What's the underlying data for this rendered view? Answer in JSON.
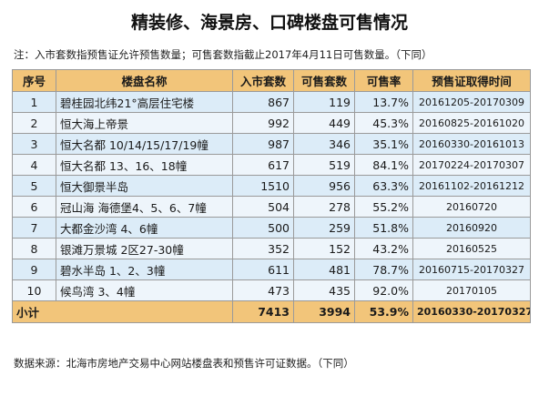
{
  "title": "精装修、海景房、口碑楼盘可售情况",
  "note_top": "注：入市套数指预售证允许预售数量；可售套数指截止2017年4月11日可售数量。（下同）",
  "colors": {
    "header_bg": "#f2c57a",
    "row_bg": "#dcecf8",
    "row_alt_bg": "#eef5fb",
    "border": "#9a9a9a"
  },
  "table": {
    "headers": [
      "序号",
      "楼盘名称",
      "入市套数",
      "可售套数",
      "可售率",
      "预售证取得时间"
    ],
    "rows": [
      {
        "no": "1",
        "name": "碧桂园北纬21°高层住宅楼",
        "entered": "867",
        "available": "119",
        "rate": "13.7%",
        "date": "20161205-20170309"
      },
      {
        "no": "2",
        "name": "恒大海上帝景",
        "entered": "992",
        "available": "449",
        "rate": "45.3%",
        "date": "20160825-20161020"
      },
      {
        "no": "3",
        "name": "恒大名都 10/14/15/17/19幢",
        "entered": "987",
        "available": "346",
        "rate": "35.1%",
        "date": "20160330-20161013"
      },
      {
        "no": "4",
        "name": "恒大名都 13、16、18幢",
        "entered": "617",
        "available": "519",
        "rate": "84.1%",
        "date": "20170224-20170307"
      },
      {
        "no": "5",
        "name": "恒大御景半岛",
        "entered": "1510",
        "available": "956",
        "rate": "63.3%",
        "date": "20161102-20161212"
      },
      {
        "no": "6",
        "name": "冠山海 海德堡4、5、6、7幢",
        "entered": "504",
        "available": "278",
        "rate": "55.2%",
        "date": "20160720"
      },
      {
        "no": "7",
        "name": "大都金沙湾 4、6幢",
        "entered": "500",
        "available": "259",
        "rate": "51.8%",
        "date": "20160920"
      },
      {
        "no": "8",
        "name": "银滩万景城 2区27-30幢",
        "entered": "352",
        "available": "152",
        "rate": "43.2%",
        "date": "20160525"
      },
      {
        "no": "9",
        "name": "碧水半岛 1、2、3幢",
        "entered": "611",
        "available": "481",
        "rate": "78.7%",
        "date": "20160715-20170327"
      },
      {
        "no": "10",
        "name": "候鸟湾 3、4幢",
        "entered": "473",
        "available": "435",
        "rate": "92.0%",
        "date": "20170105"
      }
    ],
    "summary": {
      "label": "小计",
      "entered": "7413",
      "available": "3994",
      "rate": "53.9%",
      "date": "20160330-20170327"
    }
  },
  "note_bottom": "数据来源：北海市房地产交易中心网站楼盘表和预售许可证数据。（下同）"
}
